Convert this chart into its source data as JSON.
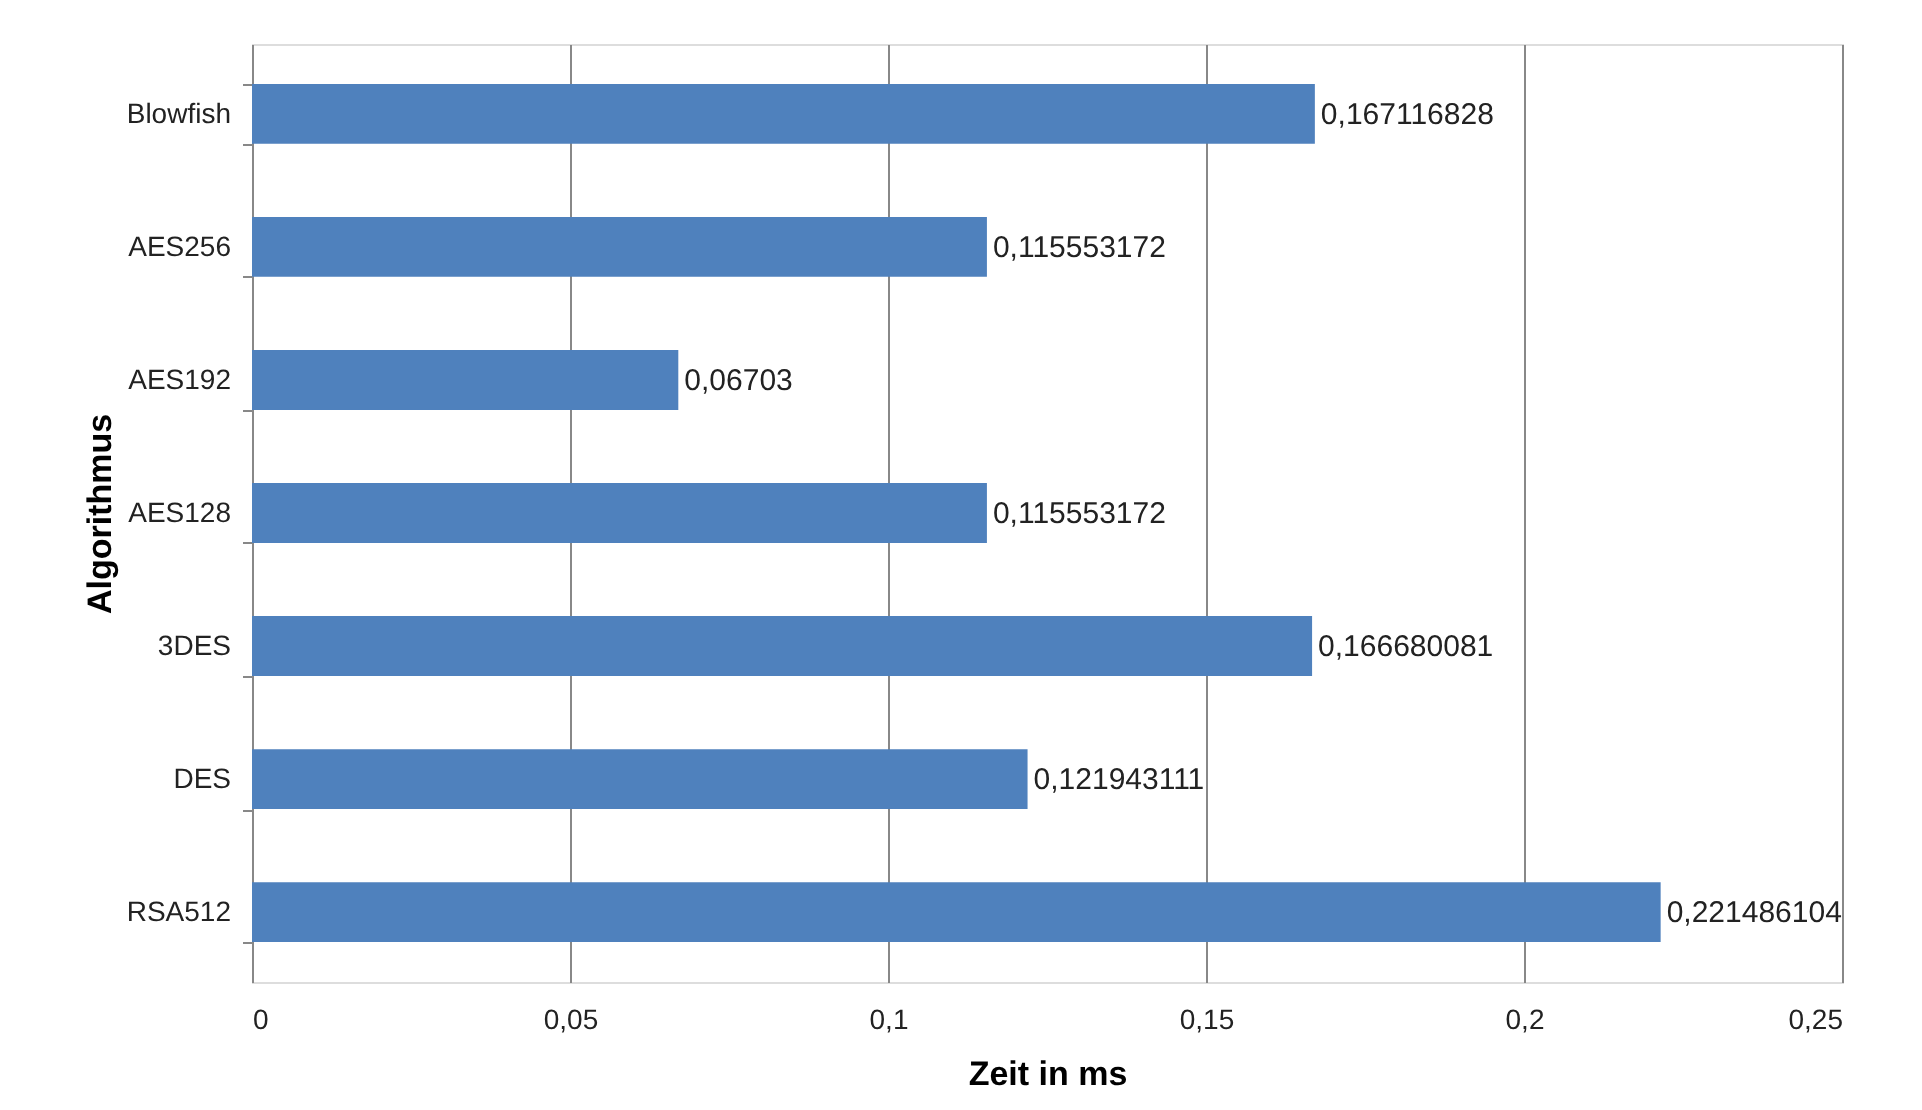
{
  "chart_data": {
    "type": "bar",
    "orientation": "horizontal",
    "xlabel": "Zeit in ms",
    "ylabel": "Algorithmus",
    "categories": [
      "Blowfish",
      "AES256",
      "AES192",
      "AES128",
      "3DES",
      "DES",
      "RSA512"
    ],
    "values": [
      0.167116828,
      0.115553172,
      0.06703,
      0.115553172,
      0.166680081,
      0.121943111,
      0.221486104
    ],
    "value_labels": [
      "0,167116828",
      "0,115553172",
      "0,06703",
      "0,115553172",
      "0,166680081",
      "0,121943111",
      "0,221486104"
    ],
    "color": "#4f81bd",
    "xlim": [
      0,
      0.25
    ],
    "xticks": [
      0,
      {
        "value": 0.05,
        "label": "0,05"
      },
      {
        "value": 0.1,
        "label": "0,1"
      },
      {
        "value": 0.15,
        "label": "0,15"
      },
      {
        "value": 0.2,
        "label": "0,2"
      },
      {
        "value": 0.25,
        "label": "0,25"
      }
    ],
    "grid": "x"
  }
}
